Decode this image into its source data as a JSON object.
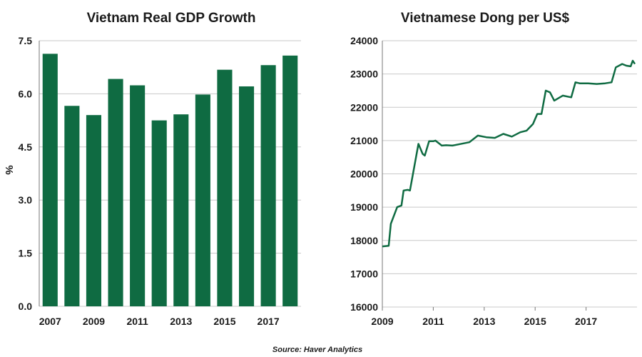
{
  "colors": {
    "series": "#0f6b42"
  },
  "source": "Source: Haver Analytics",
  "chart_data": [
    {
      "type": "bar",
      "title": "Vietnam Real GDP Growth",
      "ylabel": "%",
      "ylim": [
        0,
        7.5
      ],
      "yticks": [
        "0.0",
        "1.5",
        "3.0",
        "4.5",
        "6.0",
        "7.5"
      ],
      "xtick_labels": [
        "2007",
        "2009",
        "2011",
        "2013",
        "2015",
        "2017"
      ],
      "grid": true,
      "categories": [
        "2007",
        "2008",
        "2009",
        "2010",
        "2011",
        "2012",
        "2013",
        "2014",
        "2015",
        "2016",
        "2017",
        "2018"
      ],
      "values": [
        7.13,
        5.66,
        5.4,
        6.42,
        6.24,
        5.25,
        5.42,
        5.98,
        6.68,
        6.21,
        6.81,
        7.08
      ]
    },
    {
      "type": "line",
      "title": "Vietnamese Dong per US$",
      "ylim": [
        16000,
        24000
      ],
      "yticks": [
        "16000",
        "17000",
        "18000",
        "19000",
        "20000",
        "21000",
        "22000",
        "23000",
        "24000"
      ],
      "xlim": [
        "2009-01",
        "2018-12"
      ],
      "xtick_labels": [
        "2009",
        "2011",
        "2013",
        "2015",
        "2017"
      ],
      "grid": true,
      "series": [
        {
          "x": [
            "2009-01",
            "2009-04",
            "2009-05",
            "2009-08",
            "2009-10",
            "2009-11",
            "2010-01",
            "2010-02",
            "2010-06",
            "2010-08",
            "2010-09",
            "2010-11",
            "2011-01",
            "2011-02",
            "2011-05",
            "2011-07",
            "2011-10",
            "2012-06",
            "2012-10",
            "2013-02",
            "2013-06",
            "2013-10",
            "2014-02",
            "2014-06",
            "2014-09",
            "2014-12",
            "2015-02",
            "2015-04",
            "2015-06",
            "2015-08",
            "2015-10",
            "2016-02",
            "2016-06",
            "2016-08",
            "2016-10",
            "2017-02",
            "2017-06",
            "2017-10",
            "2018-01",
            "2018-03",
            "2018-06",
            "2018-08",
            "2018-10",
            "2018-11",
            "2018-12"
          ],
          "y": [
            17820,
            17840,
            18500,
            19000,
            19050,
            19500,
            19520,
            19500,
            20900,
            20600,
            20550,
            20980,
            20980,
            21000,
            20850,
            20860,
            20850,
            20950,
            21150,
            21100,
            21080,
            21200,
            21120,
            21250,
            21300,
            21500,
            21800,
            21800,
            22500,
            22450,
            22200,
            22350,
            22300,
            22750,
            22720,
            22720,
            22700,
            22720,
            22750,
            23200,
            23300,
            23250,
            23230,
            23400,
            23300
          ]
        }
      ]
    }
  ]
}
